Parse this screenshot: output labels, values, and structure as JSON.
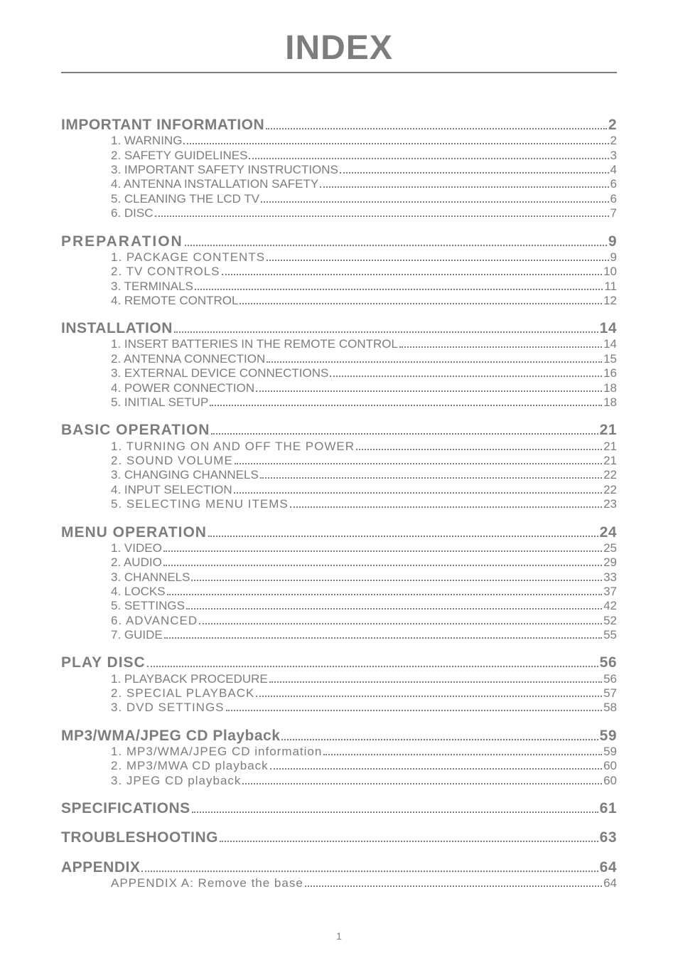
{
  "page_title": "INDEX",
  "page_number": "1",
  "colors": {
    "text": "#7d7d7d",
    "background": "#ffffff",
    "rule": "#7d7d7d",
    "dots": "#7d7d7d"
  },
  "typography": {
    "title_fontsize": 48,
    "h1_fontsize": 21,
    "sub_fontsize": 17,
    "font_family": "Arial"
  },
  "sections": [
    {
      "heading": "IMPORTANT INFORMATION",
      "page": "2",
      "items": [
        {
          "label": "1. WARNING",
          "page": "2"
        },
        {
          "label": "2. SAFETY GUIDELINES",
          "page": "3"
        },
        {
          "label": "3. IMPORTANT SAFETY INSTRUCTIONS",
          "page": "4"
        },
        {
          "label": "4. ANTENNA INSTALLATION SAFETY",
          "page": "6"
        },
        {
          "label": "5. CLEANING THE LCD TV",
          "page": "6"
        },
        {
          "label": "6. DISC",
          "page": "7"
        }
      ]
    },
    {
      "heading": "PREPARATION",
      "page": "9",
      "heading_ls": "ls1",
      "items": [
        {
          "label": "1. PACKAGE CONTENTS",
          "page": "9",
          "ls": "ls2"
        },
        {
          "label": "2. TV CONTROLS",
          "page": "10",
          "ls": "ls2"
        },
        {
          "label": "3. TERMINALS",
          "page": "11"
        },
        {
          "label": "4. REMOTE CONTROL",
          "page": "12"
        }
      ]
    },
    {
      "heading": "INSTALLATION",
      "page": "14",
      "items": [
        {
          "label": "1.  INSERT BATTERIES IN THE REMOTE CONTROL",
          "page": "14"
        },
        {
          "label": "2.  ANTENNA CONNECTION",
          "page": "15"
        },
        {
          "label": "3.  EXTERNAL DEVICE CONNECTIONS",
          "page": "16"
        },
        {
          "label": "4.  POWER CONNECTION",
          "page": "18"
        },
        {
          "label": "5.  INITIAL SETUP",
          "page": "18"
        }
      ]
    },
    {
      "heading": "BASIC OPERATION",
      "page": "21",
      "heading_ls": "ls2",
      "items": [
        {
          "label": "1. TURNING ON AND OFF THE POWER",
          "page": "21",
          "ls": "ls2"
        },
        {
          "label": "2. SOUND VOLUME",
          "page": "21",
          "ls": "ls2"
        },
        {
          "label": "3.  CHANGING CHANNELS",
          "page": "22"
        },
        {
          "label": "4.   INPUT SELECTION",
          "page": "22"
        },
        {
          "label": "5.   SELECTING MENU ITEMS",
          "page": "23",
          "ls": "ls2"
        }
      ]
    },
    {
      "heading": "MENU OPERATION",
      "page": "24",
      "heading_ls": "ls2",
      "items": [
        {
          "label": "1. VIDEO",
          "page": "25"
        },
        {
          "label": "2. AUDIO",
          "page": "29"
        },
        {
          "label": "3. CHANNELS",
          "page": "33"
        },
        {
          "label": "4. LOCKS",
          "page": "37"
        },
        {
          "label": "5. SETTINGS",
          "page": "42"
        },
        {
          "label": "6. ADVANCED",
          "page": "52",
          "ls": "ls2"
        },
        {
          "label": "7. GUIDE",
          "page": "55"
        }
      ]
    },
    {
      "heading": "PLAY DISC",
      "page": "56",
      "heading_ls": "ls2",
      "items": [
        {
          "label": "1.  PLAYBACK PROCEDURE",
          "page": "56"
        },
        {
          "label": "2. SPECIAL PLAYBACK",
          "page": "57",
          "ls": "ls2"
        },
        {
          "label": "3. DVD SETTINGS",
          "page": "58",
          "ls": "ls2"
        }
      ]
    },
    {
      "heading": "MP3/WMA/JPEG CD Playback",
      "page": "59",
      "items": [
        {
          "label": "1. MP3/WMA/JPEG CD information",
          "page": "59",
          "ls": "ls2"
        },
        {
          "label": "2. MP3/MWA CD playback",
          "page": "60",
          "ls": "ls2"
        },
        {
          "label": "3. JPEG CD playback",
          "page": "60",
          "ls": "ls2"
        }
      ]
    },
    {
      "heading": "SPECIFICATIONS",
      "page": "61",
      "items": []
    },
    {
      "heading": "TROUBLESHOOTING",
      "page": "63",
      "items": []
    },
    {
      "heading": "APPENDIX",
      "page": "64",
      "items": [
        {
          "label": "APPENDIX A: Remove the base",
          "page": "64",
          "ls": "ls2"
        }
      ]
    }
  ]
}
